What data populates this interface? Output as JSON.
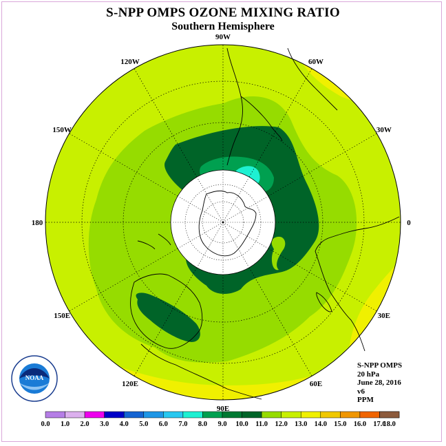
{
  "title": "S-NPP OMPS OZONE MIXING RATIO",
  "subtitle": "Southern Hemisphere",
  "info": {
    "instrument": "S-NPP OMPS",
    "level": "20 hPa",
    "date": "June 28, 2016",
    "version": "v6",
    "units": "PPM"
  },
  "longitude_labels": [
    {
      "text": "90W",
      "lon": -90
    },
    {
      "text": "60W",
      "lon": -60
    },
    {
      "text": "30W",
      "lon": -30
    },
    {
      "text": "0",
      "lon": 0
    },
    {
      "text": "30E",
      "lon": 30
    },
    {
      "text": "60E",
      "lon": 60
    },
    {
      "text": "90E",
      "lon": 90
    },
    {
      "text": "120E",
      "lon": 120
    },
    {
      "text": "150E",
      "lon": 150
    },
    {
      "text": "180",
      "lon": 180
    },
    {
      "text": "150W",
      "lon": -150
    },
    {
      "text": "120W",
      "lon": -120
    }
  ],
  "colorbar": {
    "ticks": [
      "0.0",
      "1.0",
      "2.0",
      "3.0",
      "4.0",
      "5.0",
      "6.0",
      "7.0",
      "8.0",
      "9.0",
      "10.0",
      "11.0",
      "12.0",
      "13.0",
      "14.0",
      "15.0",
      "16.0",
      "17.0",
      "18.0"
    ],
    "colors": [
      "#b57ee6",
      "#dcb0ee",
      "#ee00ee",
      "#0000c8",
      "#1464d2",
      "#1e96e6",
      "#28c8f0",
      "#1ef0d2",
      "#00a050",
      "#007832",
      "#006428",
      "#96dc00",
      "#c8f000",
      "#f0f000",
      "#f0c800",
      "#f09600",
      "#f06400",
      "#f00000",
      "#8c5a3c"
    ]
  },
  "colors": {
    "c11": "#c8f000",
    "c10": "#96dc00",
    "c9": "#006428",
    "c8": "#00a050",
    "c7": "#1ef0d2",
    "c12": "#f0f000"
  },
  "logo": {
    "name": "NOAA",
    "ring_text": "NATIONAL OCEANIC AND ATMOSPHERIC ADMINISTRATION U.S. DEPARTMENT OF COMMERCE"
  }
}
